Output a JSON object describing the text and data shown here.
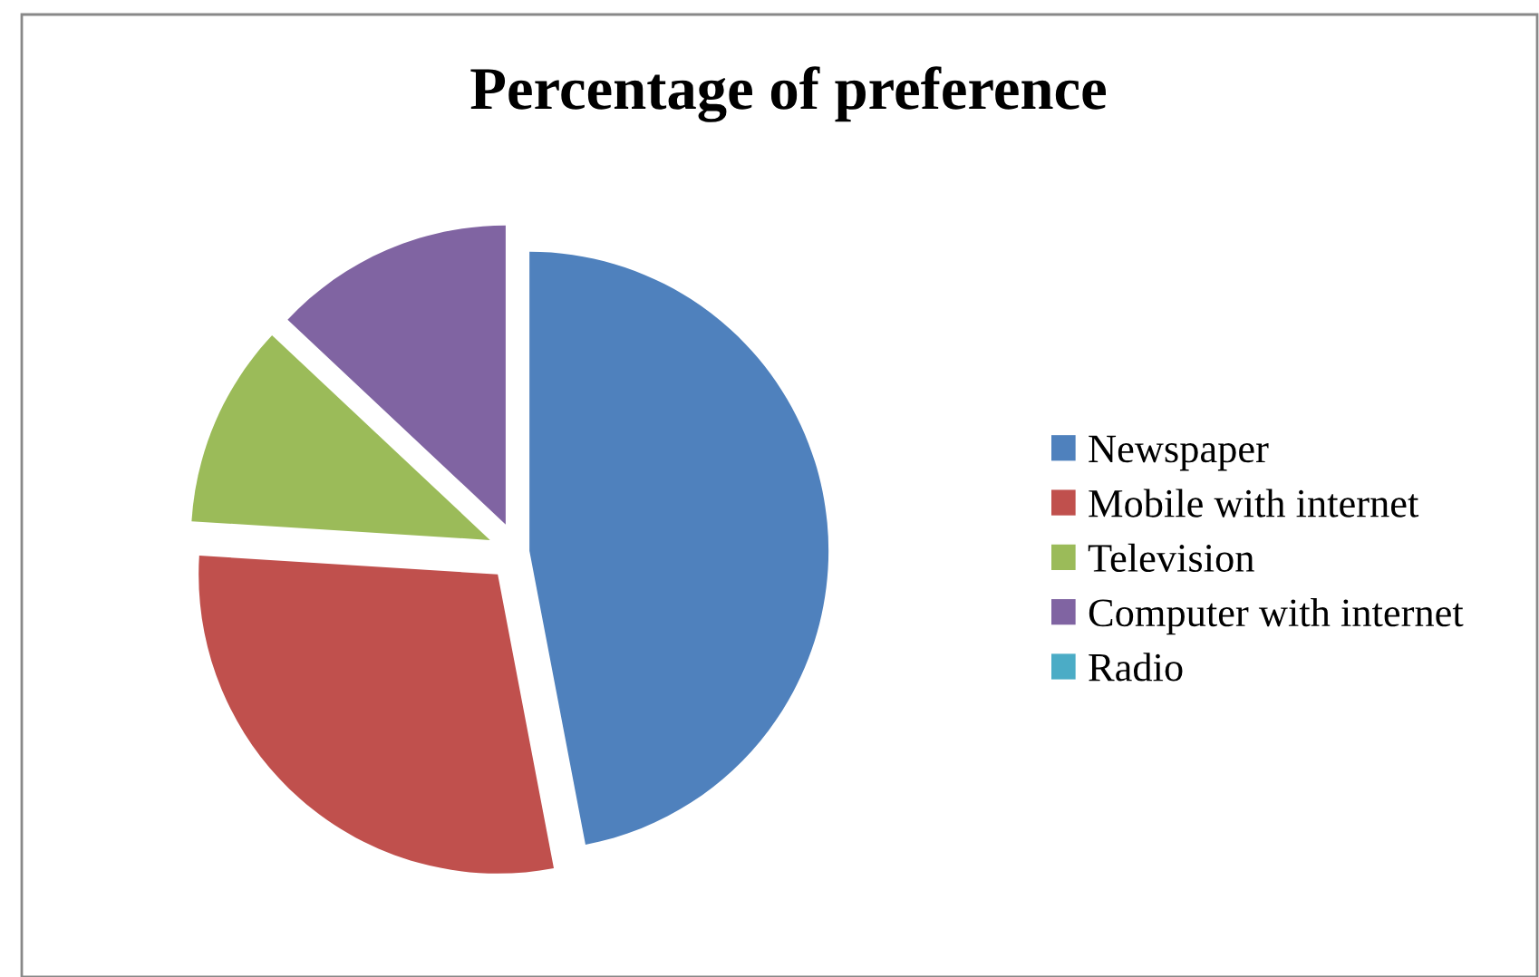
{
  "chart_data": {
    "type": "pie",
    "title": "Percentage of preference",
    "categories": [
      "Newspaper",
      "Mobile with internet",
      "Television",
      "Computer with internet",
      "Radio"
    ],
    "values": [
      47,
      29,
      11,
      13,
      0
    ],
    "colors": [
      "#4f81bd",
      "#c0504d",
      "#9bbb59",
      "#8064a2",
      "#4bacc6"
    ],
    "legend": "right"
  }
}
